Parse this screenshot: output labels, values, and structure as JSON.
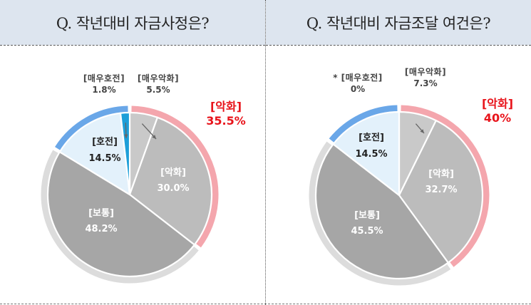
{
  "charts": [
    {
      "title": "Q. 작년대비 자금사정은?",
      "group": {
        "label": "[악화]",
        "value": "35.5%"
      },
      "chart_data": {
        "type": "pie",
        "title": "Q. 작년대비 자금사정은?",
        "slices": [
          {
            "label": "[매우악화]",
            "value": 5.5,
            "display": "5.5%",
            "color": "#c9c9c9"
          },
          {
            "label": "[악화]",
            "value": 30.0,
            "display": "30.0%",
            "color": "#bcbcbc"
          },
          {
            "label": "[보통]",
            "value": 48.2,
            "display": "48.2%",
            "color": "#a6a6a6"
          },
          {
            "label": "[호전]",
            "value": 14.5,
            "display": "14.5%",
            "color": "#e3f1fb"
          },
          {
            "label": "[매우호전]",
            "value": 1.8,
            "display": "1.8%",
            "color": "#1e9fd8"
          }
        ],
        "outer_ring": [
          {
            "group": "악화",
            "value": 35.5,
            "color": "#f4a6ad"
          },
          {
            "group": "보통",
            "value": 48.2,
            "color": "#dcdcdc"
          },
          {
            "group": "호전",
            "value": 16.3,
            "color": "#6aa7e8"
          }
        ]
      }
    },
    {
      "title": "Q. 작년대비 자금조달 여건은?",
      "group": {
        "label": "[악화]",
        "value": "40%"
      },
      "chart_data": {
        "type": "pie",
        "title": "Q. 작년대비 자금조달 여건은?",
        "slices": [
          {
            "label": "[매우악화]",
            "value": 7.3,
            "display": "7.3%",
            "color": "#c9c9c9"
          },
          {
            "label": "[악화]",
            "value": 32.7,
            "display": "32.7%",
            "color": "#bcbcbc"
          },
          {
            "label": "[보통]",
            "value": 45.5,
            "display": "45.5%",
            "color": "#a6a6a6"
          },
          {
            "label": "[호전]",
            "value": 14.5,
            "display": "14.5%",
            "color": "#e3f1fb"
          },
          {
            "label": "* [매우호전]",
            "value": 0,
            "display": "0%",
            "color": "#1e9fd8"
          }
        ],
        "outer_ring": [
          {
            "group": "악화",
            "value": 40.0,
            "color": "#f4a6ad"
          },
          {
            "group": "보통",
            "value": 45.5,
            "color": "#dcdcdc"
          },
          {
            "group": "호전",
            "value": 14.5,
            "color": "#6aa7e8"
          }
        ]
      }
    }
  ]
}
